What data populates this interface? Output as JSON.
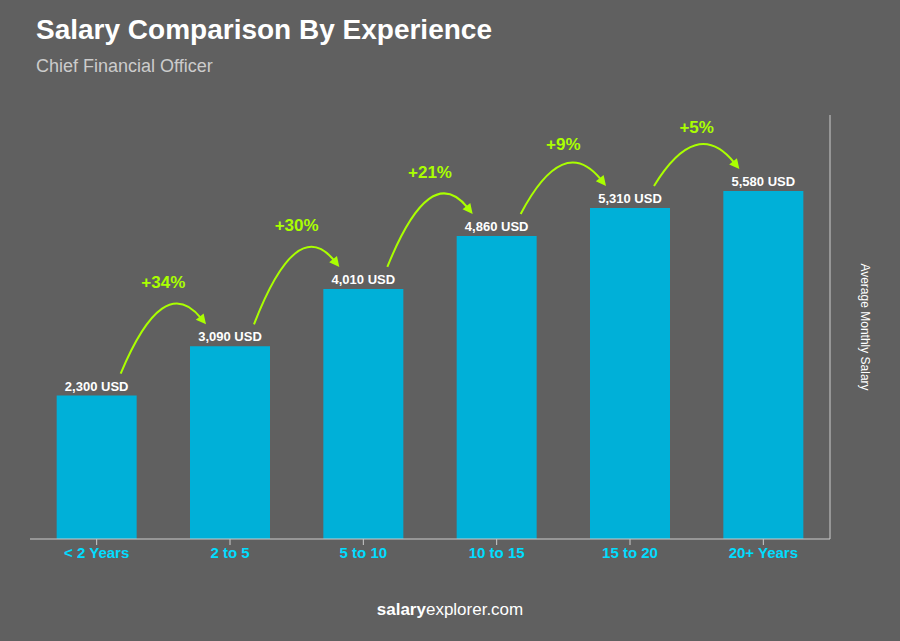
{
  "chart_data": {
    "type": "bar",
    "title": "Salary Comparison By Experience",
    "subtitle": "Chief Financial Officer",
    "y_label": "Average Monthly Salary",
    "categories": [
      "< 2 Years",
      "2 to 5",
      "5 to 10",
      "10 to 15",
      "15 to 20",
      "20+ Years"
    ],
    "values": [
      2300,
      3090,
      4010,
      4860,
      5310,
      5580
    ],
    "value_labels": [
      "2,300 USD",
      "3,090 USD",
      "4,010 USD",
      "4,860 USD",
      "5,310 USD",
      "5,580 USD"
    ],
    "data_labels": true,
    "annotations": [
      "+34%",
      "+30%",
      "+21%",
      "+9%",
      "+5%"
    ],
    "watermark": [
      "salary",
      "explorer.com"
    ],
    "color": "#00b0d8",
    "ylim": [
      0,
      6800
    ],
    "tick_labels": "x"
  }
}
